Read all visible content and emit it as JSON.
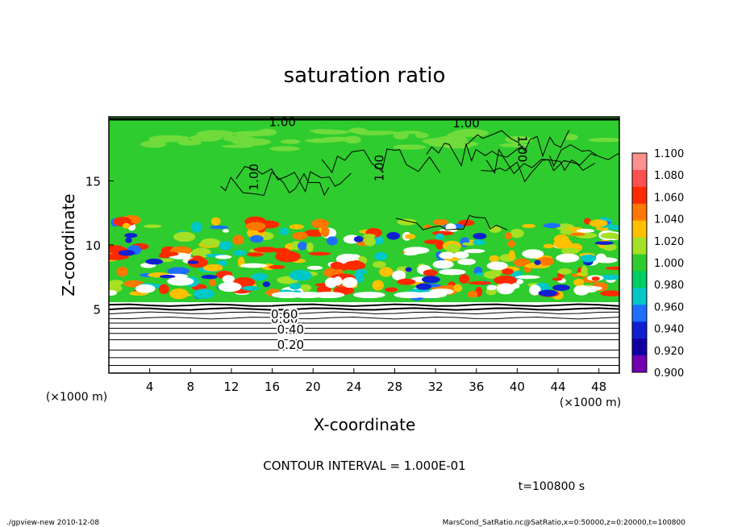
{
  "chart_data": {
    "type": "heatmap",
    "title": "saturation ratio",
    "xlabel": "X-coordinate",
    "ylabel": "Z-coordinate",
    "x_units": "(×1000 m)",
    "y_units": "(×1000 m)",
    "xlim": [
      0,
      50
    ],
    "ylim": [
      0,
      20
    ],
    "x_ticks": [
      "4",
      "8",
      "12",
      "16",
      "20",
      "24",
      "28",
      "32",
      "36",
      "40",
      "44",
      "48"
    ],
    "y_ticks": [
      "5",
      "10",
      "15"
    ],
    "colorbar": {
      "labels": [
        "1.100",
        "1.080",
        "1.060",
        "1.040",
        "1.020",
        "1.000",
        "0.980",
        "0.960",
        "0.940",
        "0.920",
        "0.900"
      ],
      "colors": [
        "#ff9090",
        "#ff5050",
        "#ff2a00",
        "#ff7800",
        "#ffc000",
        "#a4e024",
        "#2ecc2e",
        "#00cc66",
        "#00c8c8",
        "#1e6fff",
        "#1020d0",
        "#1000a0",
        "#7000b0"
      ]
    },
    "contour_labels": [
      "1.00",
      "1.00",
      "1.00",
      "1.00",
      "1.00",
      "0.80",
      "0.60",
      "0.40",
      "0.20"
    ],
    "contour_interval": "CONTOUR INTERVAL = 1.000E-01",
    "time_label": "t=100800 s",
    "footer_left": "./gpview-new  2010-12-08",
    "footer_right": "MarsCond_SatRatio.nc@SatRatio,x=0:50000,z=0:20000,t=100800"
  }
}
